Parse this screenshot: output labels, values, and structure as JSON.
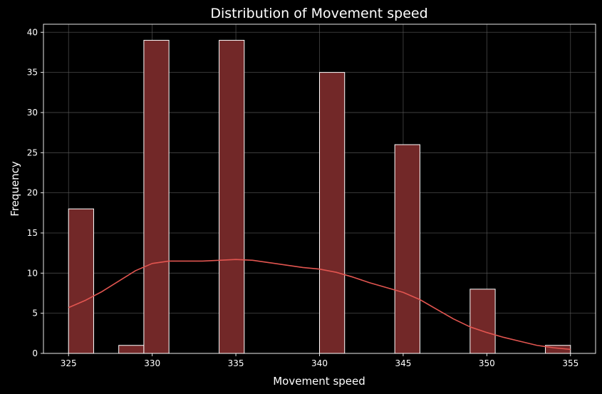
{
  "chart_data": {
    "type": "bar",
    "title": "Distribution of Movement speed",
    "xlabel": "Movement speed",
    "ylabel": "Frequency",
    "xlim": [
      323.5,
      356.5
    ],
    "ylim": [
      0,
      41
    ],
    "xticks": [
      325,
      330,
      335,
      340,
      345,
      350,
      355
    ],
    "yticks": [
      0,
      5,
      10,
      15,
      20,
      25,
      30,
      35,
      40
    ],
    "grid": true,
    "bin_width": 1.5,
    "bins": [
      {
        "start": 325.0,
        "end": 326.5,
        "count": 18
      },
      {
        "start": 326.5,
        "end": 328.0,
        "count": 0
      },
      {
        "start": 328.0,
        "end": 329.5,
        "count": 1
      },
      {
        "start": 329.5,
        "end": 331.0,
        "count": 39
      },
      {
        "start": 331.0,
        "end": 332.5,
        "count": 0
      },
      {
        "start": 332.5,
        "end": 334.0,
        "count": 0
      },
      {
        "start": 334.0,
        "end": 335.5,
        "count": 39
      },
      {
        "start": 335.5,
        "end": 337.0,
        "count": 0
      },
      {
        "start": 337.0,
        "end": 338.5,
        "count": 0
      },
      {
        "start": 338.5,
        "end": 340.0,
        "count": 0
      },
      {
        "start": 340.0,
        "end": 341.5,
        "count": 35
      },
      {
        "start": 341.5,
        "end": 343.0,
        "count": 0
      },
      {
        "start": 343.0,
        "end": 344.5,
        "count": 0
      },
      {
        "start": 344.5,
        "end": 346.0,
        "count": 26
      },
      {
        "start": 346.0,
        "end": 347.5,
        "count": 0
      },
      {
        "start": 347.5,
        "end": 349.0,
        "count": 0
      },
      {
        "start": 349.0,
        "end": 350.5,
        "count": 8
      },
      {
        "start": 350.5,
        "end": 352.0,
        "count": 0
      },
      {
        "start": 352.0,
        "end": 353.5,
        "count": 0
      },
      {
        "start": 353.5,
        "end": 355.0,
        "count": 1
      }
    ],
    "kde": {
      "x": [
        325,
        326,
        327,
        328,
        329,
        330,
        331,
        332,
        333,
        334,
        335,
        336,
        337,
        338,
        339,
        340,
        341,
        342,
        343,
        344,
        345,
        346,
        347,
        348,
        349,
        350,
        351,
        352,
        353,
        354,
        355
      ],
      "y": [
        5.7,
        6.6,
        7.7,
        9.0,
        10.3,
        11.2,
        11.5,
        11.5,
        11.5,
        11.6,
        11.7,
        11.6,
        11.3,
        11.0,
        10.7,
        10.5,
        10.1,
        9.5,
        8.8,
        8.2,
        7.6,
        6.7,
        5.5,
        4.3,
        3.3,
        2.6,
        2.0,
        1.5,
        1.0,
        0.7,
        0.5
      ]
    },
    "colors": {
      "background": "#000000",
      "bar_fill": "#722828",
      "bar_edge": "#ffffff",
      "kde_line": "#e25550",
      "grid": "#5a5a5a",
      "text": "#ffffff"
    }
  }
}
